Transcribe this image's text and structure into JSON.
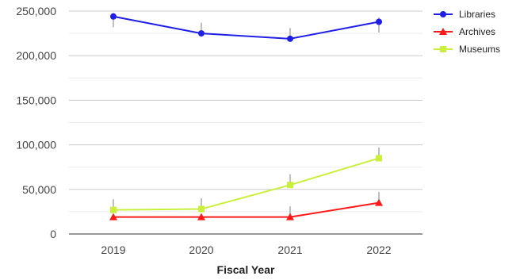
{
  "chart_data": {
    "type": "line",
    "title": "",
    "xlabel": "Fiscal Year",
    "ylabel": "",
    "categories": [
      "2019",
      "2020",
      "2021",
      "2022"
    ],
    "ylim": [
      0,
      250000
    ],
    "yticks": [
      0,
      50000,
      100000,
      150000,
      200000,
      250000
    ],
    "ytick_labels": [
      "0",
      "50,000",
      "100,000",
      "150,000",
      "200,000",
      "250,000"
    ],
    "grid": true,
    "legend_position": "top-right",
    "series": [
      {
        "name": "Libraries",
        "color": "#1f1fe6",
        "marker": "circle",
        "values": [
          244000,
          225000,
          219000,
          238000
        ],
        "error_high": [
          248000,
          237000,
          231000,
          243000
        ],
        "error_low": [
          232000,
          225000,
          219000,
          226000
        ]
      },
      {
        "name": "Archives",
        "color": "#ff1a1a",
        "marker": "triangle",
        "values": [
          19000,
          19000,
          19000,
          35000
        ],
        "error_high": [
          19000,
          19000,
          31000,
          47000
        ],
        "error_low": [
          19000,
          19000,
          19000,
          35000
        ]
      },
      {
        "name": "Museums",
        "color": "#c8f03c",
        "marker": "square",
        "values": [
          27000,
          28000,
          55000,
          85000
        ],
        "error_high": [
          39000,
          40000,
          67000,
          97000
        ],
        "error_low": [
          27000,
          28000,
          55000,
          85000
        ]
      }
    ]
  }
}
